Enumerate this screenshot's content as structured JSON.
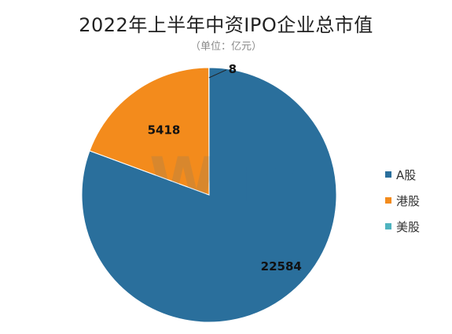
{
  "chart_data": {
    "type": "pie",
    "title": "2022年上半年中资IPO企业总市值",
    "subtitle": "（单位：亿元）",
    "categories": [
      "A股",
      "港股",
      "美股"
    ],
    "values": [
      22584,
      5418,
      8
    ],
    "data_labels": [
      "22584",
      "5418",
      "8"
    ],
    "colors": [
      "#2a6f9c",
      "#f38b1c",
      "#4fb3bf"
    ],
    "legend": "right",
    "watermark": "Wind"
  }
}
